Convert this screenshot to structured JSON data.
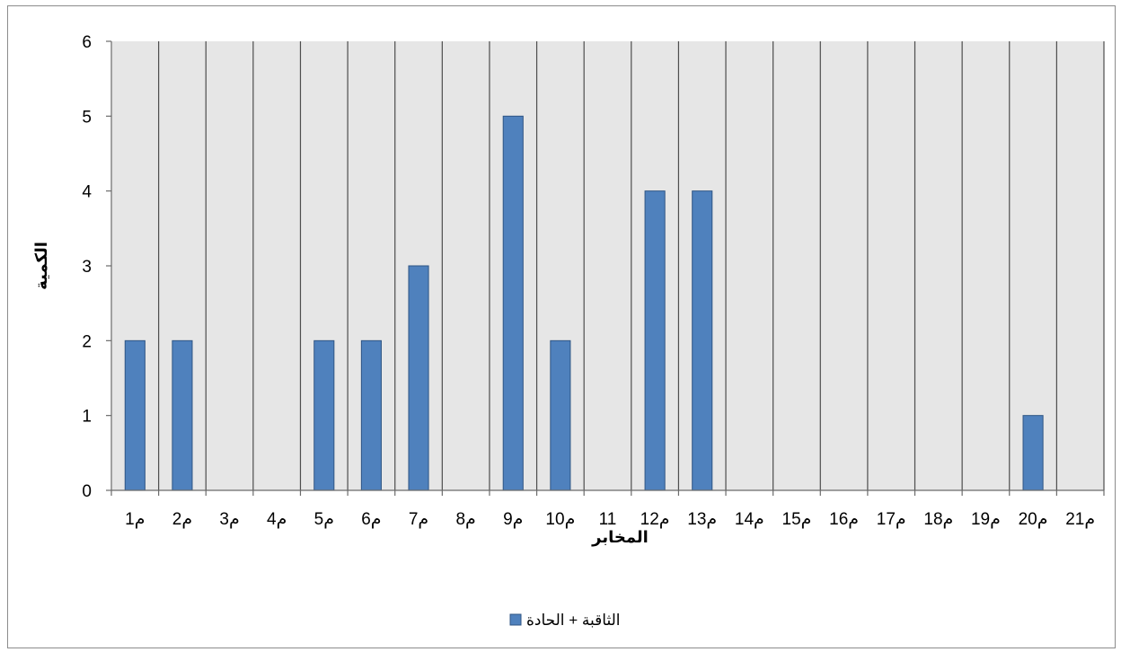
{
  "chart_data": {
    "type": "bar",
    "categories": [
      "م1",
      "م2",
      "م3",
      "م4",
      "م5",
      "م6",
      "م7",
      "م8",
      "م9",
      "م10",
      "11",
      "م12",
      "م13",
      "م14",
      "م15",
      "م16",
      "م17",
      "م18",
      "م19",
      "م20",
      "م21"
    ],
    "series": [
      {
        "name": "الثاقبة + الحادة",
        "values": [
          2,
          2,
          0,
          0,
          2,
          2,
          3,
          0,
          5,
          2,
          0,
          4,
          4,
          0,
          0,
          0,
          0,
          0,
          0,
          1,
          0
        ],
        "color": "#4f81bd"
      }
    ],
    "xlabel": "المخابر",
    "ylabel": "الكمية",
    "ylim": [
      0,
      6
    ],
    "yticks": [
      0,
      1,
      2,
      3,
      4,
      5,
      6
    ],
    "grid": "vertical",
    "legend": "bottom",
    "plot_background": "#e6e6e6"
  }
}
